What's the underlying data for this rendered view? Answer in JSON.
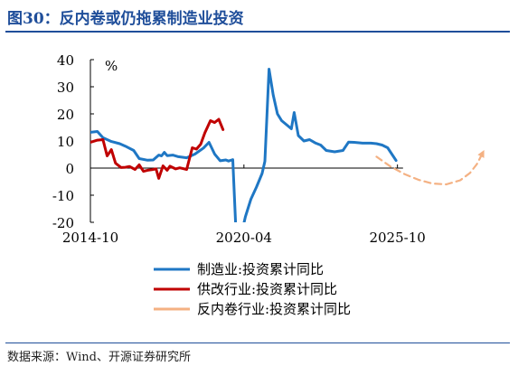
{
  "title": "图30：反内卷或仍拖累制造业投资",
  "source": "数据来源：Wind、开源证券研究所",
  "chart_data": {
    "type": "line",
    "unit": "%",
    "ylim": [
      -20,
      40
    ],
    "yticks": [
      40,
      30,
      20,
      10,
      0,
      -10,
      -20
    ],
    "xlim": [
      2014.75,
      2029.0
    ],
    "xticks": [
      {
        "x": 2014.75,
        "label": "2014-10"
      },
      {
        "x": 2020.25,
        "label": "2020-04"
      },
      {
        "x": 2025.75,
        "label": "2025-10"
      }
    ],
    "legend_position": "bottom",
    "series": [
      {
        "name": "制造业:投资累计同比",
        "color": "#1f77c4",
        "style": "solid",
        "points": [
          [
            2014.75,
            13.2
          ],
          [
            2015.0,
            13.5
          ],
          [
            2015.2,
            11.2
          ],
          [
            2015.5,
            9.8
          ],
          [
            2015.8,
            9.0
          ],
          [
            2016.0,
            8.1
          ],
          [
            2016.3,
            6.5
          ],
          [
            2016.5,
            3.5
          ],
          [
            2016.8,
            2.9
          ],
          [
            2017.0,
            3.0
          ],
          [
            2017.2,
            4.8
          ],
          [
            2017.3,
            4.5
          ],
          [
            2017.4,
            5.8
          ],
          [
            2017.5,
            4.6
          ],
          [
            2017.7,
            4.8
          ],
          [
            2017.9,
            4.2
          ],
          [
            2018.2,
            3.8
          ],
          [
            2018.5,
            5.2
          ],
          [
            2018.8,
            7.4
          ],
          [
            2019.0,
            9.5
          ],
          [
            2019.2,
            5.2
          ],
          [
            2019.4,
            2.7
          ],
          [
            2019.6,
            3.0
          ],
          [
            2019.7,
            2.6
          ],
          [
            2019.85,
            3.1
          ],
          [
            2020.0,
            -31.5
          ],
          [
            2020.15,
            -25.0
          ],
          [
            2020.3,
            -18.0
          ],
          [
            2020.5,
            -11.5
          ],
          [
            2020.7,
            -7.0
          ],
          [
            2020.9,
            -2.0
          ],
          [
            2021.0,
            2.5
          ],
          [
            2021.15,
            36.5
          ],
          [
            2021.3,
            27.0
          ],
          [
            2021.45,
            20.0
          ],
          [
            2021.6,
            17.5
          ],
          [
            2021.8,
            15.8
          ],
          [
            2021.95,
            14.5
          ],
          [
            2022.05,
            20.5
          ],
          [
            2022.2,
            12.0
          ],
          [
            2022.4,
            10.0
          ],
          [
            2022.6,
            10.5
          ],
          [
            2022.8,
            9.3
          ],
          [
            2023.0,
            8.5
          ],
          [
            2023.2,
            6.5
          ],
          [
            2023.5,
            6.0
          ],
          [
            2023.8,
            6.5
          ],
          [
            2024.0,
            9.6
          ],
          [
            2024.2,
            9.5
          ],
          [
            2024.5,
            9.2
          ],
          [
            2024.8,
            9.2
          ],
          [
            2025.0,
            9.0
          ],
          [
            2025.2,
            8.5
          ],
          [
            2025.4,
            7.5
          ],
          [
            2025.7,
            2.8
          ]
        ]
      },
      {
        "name": "供改行业:投资累计同比",
        "color": "#c00000",
        "style": "solid",
        "points": [
          [
            2014.75,
            9.5
          ],
          [
            2015.0,
            10.3
          ],
          [
            2015.2,
            10.5
          ],
          [
            2015.35,
            4.5
          ],
          [
            2015.5,
            6.8
          ],
          [
            2015.65,
            1.8
          ],
          [
            2015.85,
            0.2
          ],
          [
            2016.0,
            0.3
          ],
          [
            2016.15,
            0.6
          ],
          [
            2016.35,
            -0.5
          ],
          [
            2016.5,
            1.2
          ],
          [
            2016.65,
            -1.2
          ],
          [
            2016.8,
            -0.8
          ],
          [
            2016.95,
            -0.6
          ],
          [
            2017.1,
            -0.3
          ],
          [
            2017.2,
            -3.8
          ],
          [
            2017.35,
            0.8
          ],
          [
            2017.5,
            -0.8
          ],
          [
            2017.6,
            0.7
          ],
          [
            2017.8,
            -0.3
          ],
          [
            2017.95,
            0.1
          ],
          [
            2018.2,
            -0.5
          ],
          [
            2018.4,
            7.5
          ],
          [
            2018.55,
            7.0
          ],
          [
            2018.7,
            8.8
          ],
          [
            2018.85,
            13.0
          ],
          [
            2019.05,
            17.5
          ],
          [
            2019.2,
            16.8
          ],
          [
            2019.35,
            18.0
          ],
          [
            2019.5,
            14.2
          ]
        ]
      },
      {
        "name": "反内卷行业:投资累计同比",
        "color": "#f4b183",
        "style": "dashed",
        "points": [
          [
            2025.0,
            4.2
          ],
          [
            2025.5,
            0.6
          ],
          [
            2026.0,
            -2.2
          ],
          [
            2026.5,
            -4.3
          ],
          [
            2027.0,
            -5.7
          ],
          [
            2027.5,
            -6.0
          ],
          [
            2028.0,
            -4.5
          ],
          [
            2028.35,
            -1.8
          ],
          [
            2028.6,
            1.5
          ],
          [
            2028.8,
            5.5
          ]
        ]
      }
    ]
  }
}
